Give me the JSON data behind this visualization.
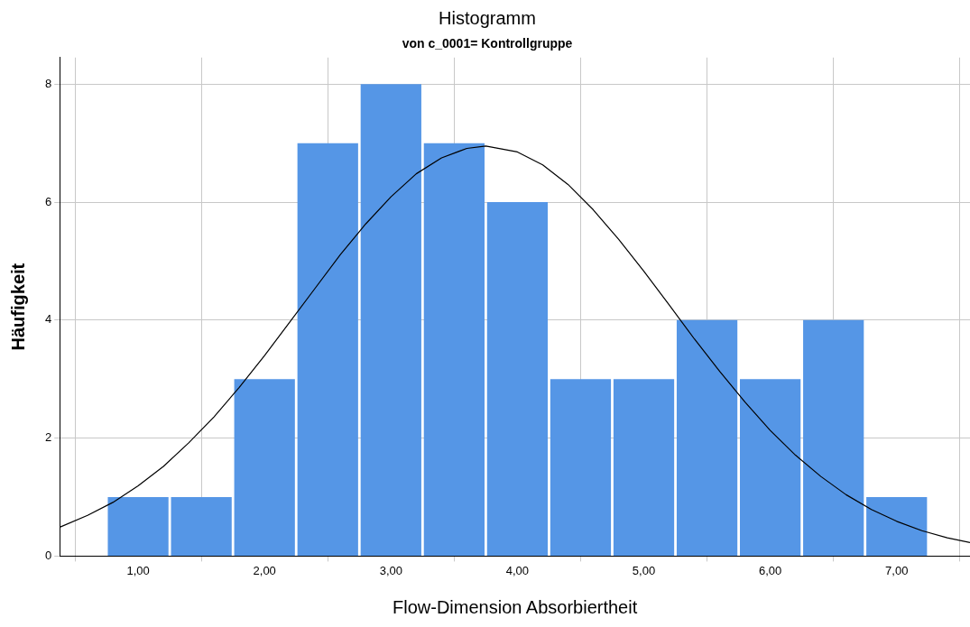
{
  "chart_data": {
    "type": "histogram",
    "title": "Histogramm",
    "subtitle": "von c_0001= Kontrollgruppe",
    "xlabel": "Flow-Dimension Absorbiertheit",
    "ylabel": "Häufigkeit",
    "bins": [
      0.75,
      1.25,
      1.75,
      2.25,
      2.75,
      3.25,
      3.75,
      4.25,
      4.75,
      5.25,
      5.75,
      6.25,
      6.75,
      7.25
    ],
    "values": [
      1,
      1,
      3,
      7,
      8,
      7,
      6,
      3,
      3,
      4,
      3,
      4,
      1
    ],
    "color": "#5596e6",
    "series": [
      {
        "type": "line",
        "color": "#000000",
        "marker": "none",
        "x": [
          0.38,
          0.6,
          0.8,
          1.0,
          1.2,
          1.4,
          1.6,
          1.8,
          2.0,
          2.2,
          2.4,
          2.6,
          2.8,
          3.0,
          3.2,
          3.4,
          3.6,
          3.75,
          4.0,
          4.2,
          4.4,
          4.6,
          4.8,
          5.0,
          5.2,
          5.4,
          5.6,
          5.8,
          6.0,
          6.2,
          6.4,
          6.6,
          6.8,
          7.0,
          7.2,
          7.4,
          7.58
        ],
        "values": [
          0.49,
          0.69,
          0.91,
          1.19,
          1.52,
          1.92,
          2.36,
          2.86,
          3.4,
          3.97,
          4.54,
          5.11,
          5.63,
          6.09,
          6.48,
          6.75,
          6.91,
          6.95,
          6.85,
          6.63,
          6.3,
          5.87,
          5.37,
          4.83,
          4.26,
          3.68,
          3.13,
          2.61,
          2.13,
          1.71,
          1.35,
          1.04,
          0.79,
          0.59,
          0.43,
          0.31,
          0.23
        ]
      }
    ],
    "xlim": [
      0.38,
      7.58
    ],
    "xticks": [
      {
        "value": 1,
        "label": "1,00"
      },
      {
        "value": 2,
        "label": "2,00"
      },
      {
        "value": 3,
        "label": "3,00"
      },
      {
        "value": 4,
        "label": "4,00"
      },
      {
        "value": 5,
        "label": "5,00"
      },
      {
        "value": 6,
        "label": "6,00"
      },
      {
        "value": 7,
        "label": "7,00"
      }
    ],
    "ylim": [
      0,
      8.45
    ],
    "yticks": [
      0,
      2,
      4,
      6,
      8
    ],
    "grid": true,
    "legend": false
  }
}
